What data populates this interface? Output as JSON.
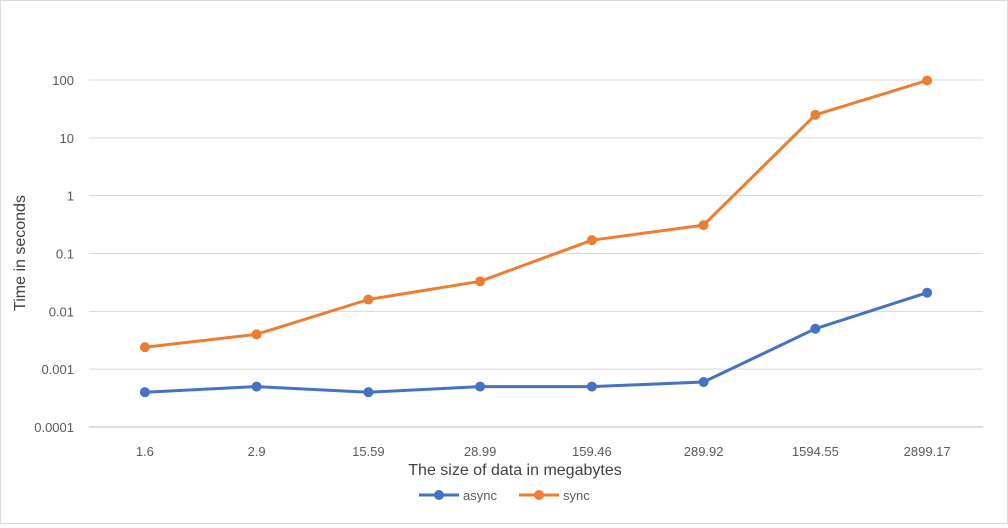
{
  "chart_data": {
    "type": "line",
    "yscale": "log",
    "ylim": [
      0.0001,
      100
    ],
    "yticks": [
      "0.0001",
      "0.001",
      "0.01",
      "0.1",
      "1",
      "10",
      "100"
    ],
    "grid": true,
    "legend_position": "bottom",
    "xlabel": "The size of data in megabytes",
    "ylabel": "Time in seconds",
    "categories": [
      "1.6",
      "2.9",
      "15.59",
      "28.99",
      "159.46",
      "289.92",
      "1594.55",
      "2899.17"
    ],
    "series": [
      {
        "name": "async",
        "color": "#4472c4",
        "values": [
          0.0004,
          0.0005,
          0.0004,
          0.0005,
          0.0005,
          0.0006,
          0.005,
          0.021
        ]
      },
      {
        "name": "sync",
        "color": "#ed7d31",
        "values": [
          0.0024,
          0.004,
          0.016,
          0.033,
          0.17,
          0.31,
          25,
          98
        ]
      }
    ]
  }
}
